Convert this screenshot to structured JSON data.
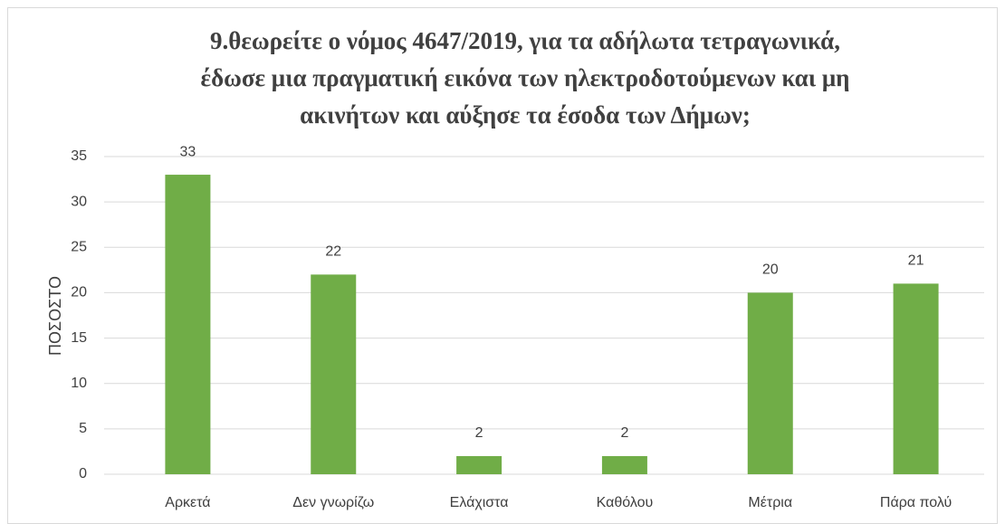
{
  "chart_data": {
    "type": "bar",
    "title": [
      "9.θεωρείτε ο νόμος 4647/2019, για τα αδήλωτα τετραγωνικά,",
      "έδωσε μια πραγματική εικόνα των ηλεκτροδοτούμενων και μη",
      "ακινήτων και αύξησε τα έσοδα των  Δήμων;"
    ],
    "y_label": "ΠΟΣΟΣΤΟ",
    "categories": [
      "Αρκετά",
      "Δεν γνωρίζω",
      "Ελάχιστα",
      "Καθόλου",
      "Μέτρια",
      "Πάρα πολύ"
    ],
    "values": [
      33,
      22,
      2,
      2,
      20,
      21
    ],
    "color": "#70ad47",
    "ylim": [
      0,
      35
    ],
    "yticks": [
      0,
      5,
      10,
      15,
      20,
      25,
      30,
      35
    ],
    "grid": true
  }
}
